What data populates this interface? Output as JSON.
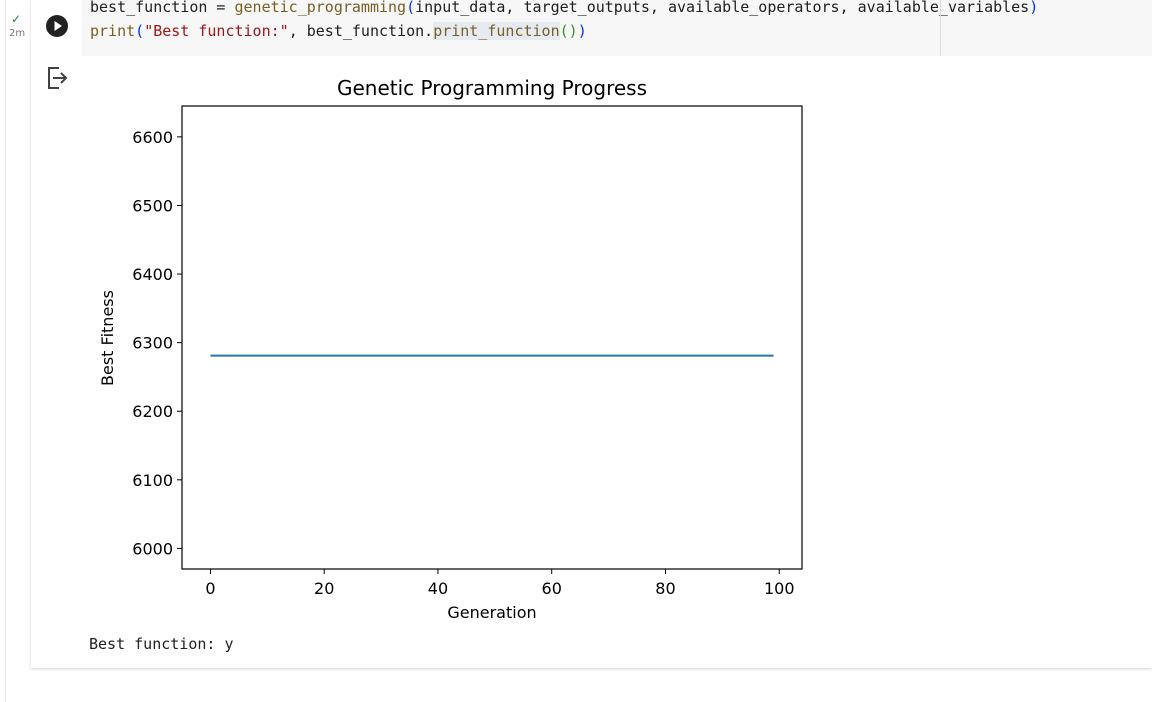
{
  "cell": {
    "status_check": "✓",
    "status_time": "2m",
    "code": {
      "line1": {
        "pre": "best_function = ",
        "fn": "genetic_programming",
        "open": "(",
        "args": "input_data, target_outputs, available_operators, available_variables",
        "close": ")"
      },
      "line2": {
        "fn": "print",
        "open": "(",
        "str": "\"Best function:\"",
        "mid": ", best_function.",
        "method": "print_function",
        "inner": "()",
        "close": ")"
      }
    }
  },
  "chart_data": {
    "type": "line",
    "title": "Genetic Programming Progress",
    "xlabel": "Generation",
    "ylabel": "Best Fitness",
    "xlim": [
      -5,
      104
    ],
    "ylim": [
      5970,
      6645
    ],
    "xticks": [
      0,
      20,
      40,
      60,
      80,
      100
    ],
    "yticks": [
      6000,
      6100,
      6200,
      6300,
      6400,
      6500,
      6600
    ],
    "series": [
      {
        "x_start": 0,
        "x_end": 99,
        "y": 6281,
        "color": "#1f77b4"
      }
    ],
    "grid": false
  },
  "output": {
    "text": "Best function: y"
  }
}
